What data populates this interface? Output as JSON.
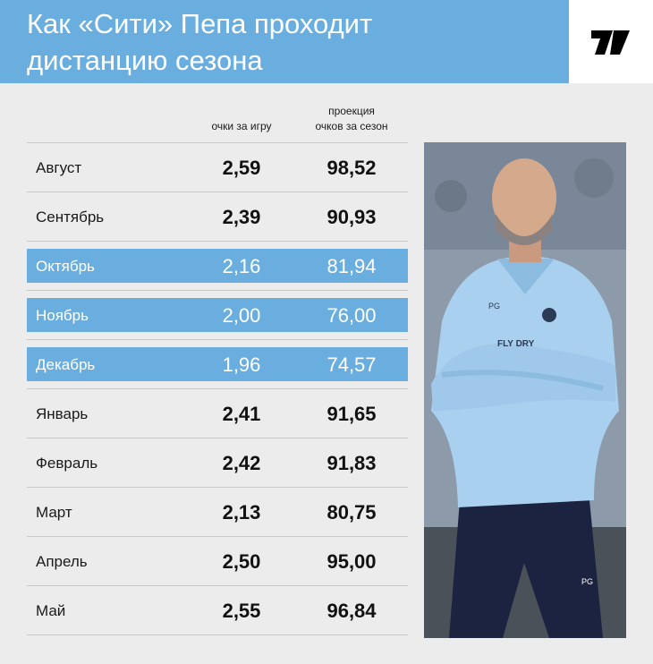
{
  "header": {
    "title_line1": "Как «Сити» Пепа проходит",
    "title_line2": "дистанцию сезона",
    "logo_icon": "outlet-logo-icon"
  },
  "colors": {
    "accent": "#6aaee0",
    "background": "#ececec",
    "shirt": "#a9d0ef",
    "trousers": "#1c2340"
  },
  "columns": {
    "ppg": "очки за игру",
    "projection_line1": "проекция",
    "projection_line2": "очков за сезон"
  },
  "rows": [
    {
      "month": "Август",
      "ppg": "2,59",
      "projection": "98,52",
      "highlight": false
    },
    {
      "month": "Сентябрь",
      "ppg": "2,39",
      "projection": "90,93",
      "highlight": false
    },
    {
      "month": "Октябрь",
      "ppg": "2,16",
      "projection": "81,94",
      "highlight": true
    },
    {
      "month": "Ноябрь",
      "ppg": "2,00",
      "projection": "76,00",
      "highlight": true
    },
    {
      "month": "Декабрь",
      "ppg": "1,96",
      "projection": "74,57",
      "highlight": true
    },
    {
      "month": "Январь",
      "ppg": "2,41",
      "projection": "91,65",
      "highlight": false
    },
    {
      "month": "Февраль",
      "ppg": "2,42",
      "projection": "91,83",
      "highlight": false
    },
    {
      "month": "Март",
      "ppg": "2,13",
      "projection": "80,75",
      "highlight": false
    },
    {
      "month": "Апрель",
      "ppg": "2,50",
      "projection": "95,00",
      "highlight": false
    },
    {
      "month": "Май",
      "ppg": "2,55",
      "projection": "96,84",
      "highlight": false
    }
  ],
  "photo": {
    "shirt_initials": "PG",
    "shirt_sponsor": "FLY DRY",
    "shorts_initials": "PG"
  },
  "chart_data": {
    "type": "table",
    "columns": [
      "",
      "очки за игру",
      "проекция очков за сезон"
    ],
    "categories": [
      "Август",
      "Сентябрь",
      "Октябрь",
      "Ноябрь",
      "Декабрь",
      "Январь",
      "Февраль",
      "Март",
      "Апрель",
      "Май"
    ],
    "series": [
      {
        "name": "очки за игру",
        "values": [
          2.59,
          2.39,
          2.16,
          2.0,
          1.96,
          2.41,
          2.42,
          2.13,
          2.5,
          2.55
        ]
      },
      {
        "name": "проекция очков за сезон",
        "values": [
          98.52,
          90.93,
          81.94,
          76.0,
          74.57,
          91.65,
          91.83,
          80.75,
          95.0,
          96.84
        ]
      }
    ],
    "highlighted_rows": [
      "Октябрь",
      "Ноябрь",
      "Декабрь"
    ],
    "title": "Как «Сити» Пепа проходит дистанцию сезона"
  }
}
